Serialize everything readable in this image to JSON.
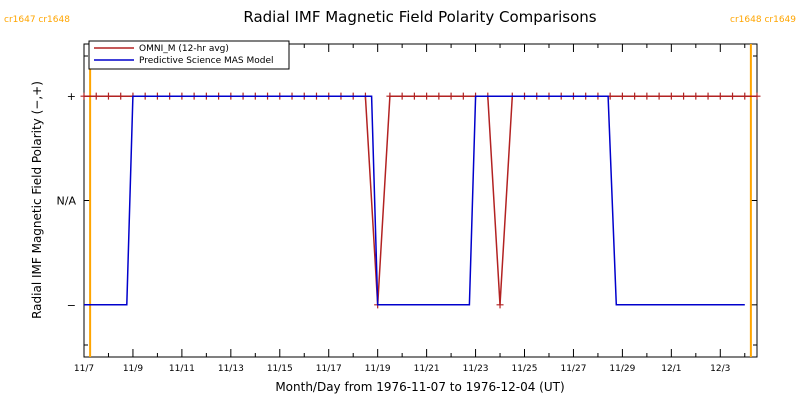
{
  "chart_data": {
    "type": "line",
    "title": "Radial IMF Magnetic Field Polarity Comparisons",
    "xlabel": "Month/Day from 1976-11-07 to 1976-12-04 (UT)",
    "ylabel": "Radial IMF Magnetic Field Polarity (−,+)",
    "xlim": [
      "1976-11-07T00:00",
      "1976-12-04T12:00"
    ],
    "ylim": [
      -1.5,
      1.5
    ],
    "x_ticks": [
      "11/7",
      "11/9",
      "11/11",
      "11/13",
      "11/15",
      "11/17",
      "11/19",
      "11/21",
      "11/23",
      "11/25",
      "11/27",
      "11/29",
      "12/1",
      "12/3"
    ],
    "y_ticks": [
      {
        "value": 1,
        "label": "+"
      },
      {
        "value": 0,
        "label": "N/A"
      },
      {
        "value": -1,
        "label": "−"
      }
    ],
    "carrington": [
      {
        "date": "1976-11-07T06:00",
        "label": "cr1647 cr1648"
      },
      {
        "date": "1976-12-04T06:00",
        "label": "cr1648 cr1649"
      }
    ],
    "legend_position": "top-left",
    "series": [
      {
        "name": "OMNI_M (12-hr avg)",
        "color": "#B22222",
        "marker": "plus",
        "points": [
          [
            "1976-11-07T00:00",
            1
          ],
          [
            "1976-11-07T12:00",
            1
          ],
          [
            "1976-11-08T00:00",
            1
          ],
          [
            "1976-11-08T12:00",
            1
          ],
          [
            "1976-11-09T00:00",
            1
          ],
          [
            "1976-11-09T12:00",
            1
          ],
          [
            "1976-11-10T00:00",
            1
          ],
          [
            "1976-11-10T12:00",
            1
          ],
          [
            "1976-11-11T00:00",
            1
          ],
          [
            "1976-11-11T12:00",
            1
          ],
          [
            "1976-11-12T00:00",
            1
          ],
          [
            "1976-11-12T12:00",
            1
          ],
          [
            "1976-11-13T00:00",
            1
          ],
          [
            "1976-11-13T12:00",
            1
          ],
          [
            "1976-11-14T00:00",
            1
          ],
          [
            "1976-11-14T12:00",
            1
          ],
          [
            "1976-11-15T00:00",
            1
          ],
          [
            "1976-11-15T12:00",
            1
          ],
          [
            "1976-11-16T00:00",
            1
          ],
          [
            "1976-11-16T12:00",
            1
          ],
          [
            "1976-11-17T00:00",
            1
          ],
          [
            "1976-11-17T12:00",
            1
          ],
          [
            "1976-11-18T00:00",
            1
          ],
          [
            "1976-11-18T12:00",
            1
          ],
          [
            "1976-11-19T00:00",
            -1
          ],
          [
            "1976-11-19T12:00",
            1
          ],
          [
            "1976-11-20T00:00",
            1
          ],
          [
            "1976-11-20T12:00",
            1
          ],
          [
            "1976-11-21T00:00",
            1
          ],
          [
            "1976-11-21T12:00",
            1
          ],
          [
            "1976-11-22T00:00",
            1
          ],
          [
            "1976-11-22T12:00",
            1
          ],
          [
            "1976-11-23T00:00",
            1
          ],
          [
            "1976-11-23T12:00",
            1
          ],
          [
            "1976-11-24T00:00",
            -1
          ],
          [
            "1976-11-24T12:00",
            1
          ],
          [
            "1976-11-25T00:00",
            1
          ],
          [
            "1976-11-25T12:00",
            1
          ],
          [
            "1976-11-26T00:00",
            1
          ],
          [
            "1976-11-26T12:00",
            1
          ],
          [
            "1976-11-27T00:00",
            1
          ],
          [
            "1976-11-27T12:00",
            1
          ],
          [
            "1976-11-28T00:00",
            1
          ],
          [
            "1976-11-28T12:00",
            1
          ],
          [
            "1976-11-29T00:00",
            1
          ],
          [
            "1976-11-29T12:00",
            1
          ],
          [
            "1976-11-30T00:00",
            1
          ],
          [
            "1976-11-30T12:00",
            1
          ],
          [
            "1976-12-01T00:00",
            1
          ],
          [
            "1976-12-01T12:00",
            1
          ],
          [
            "1976-12-02T00:00",
            1
          ],
          [
            "1976-12-02T12:00",
            1
          ],
          [
            "1976-12-03T00:00",
            1
          ],
          [
            "1976-12-03T12:00",
            1
          ],
          [
            "1976-12-04T00:00",
            1
          ],
          [
            "1976-12-04T12:00",
            1
          ]
        ]
      },
      {
        "name": "Predictive Science MAS Model",
        "color": "#0000CC",
        "marker": "none",
        "points": [
          [
            "1976-11-07T00:00",
            -1
          ],
          [
            "1976-11-08T18:00",
            -1
          ],
          [
            "1976-11-09T00:00",
            1
          ],
          [
            "1976-11-18T18:00",
            1
          ],
          [
            "1976-11-19T00:00",
            -1
          ],
          [
            "1976-11-22T18:00",
            -1
          ],
          [
            "1976-11-23T00:00",
            1
          ],
          [
            "1976-11-28T10:00",
            1
          ],
          [
            "1976-11-28T18:00",
            -1
          ],
          [
            "1976-12-04T00:00",
            -1
          ]
        ]
      }
    ]
  }
}
